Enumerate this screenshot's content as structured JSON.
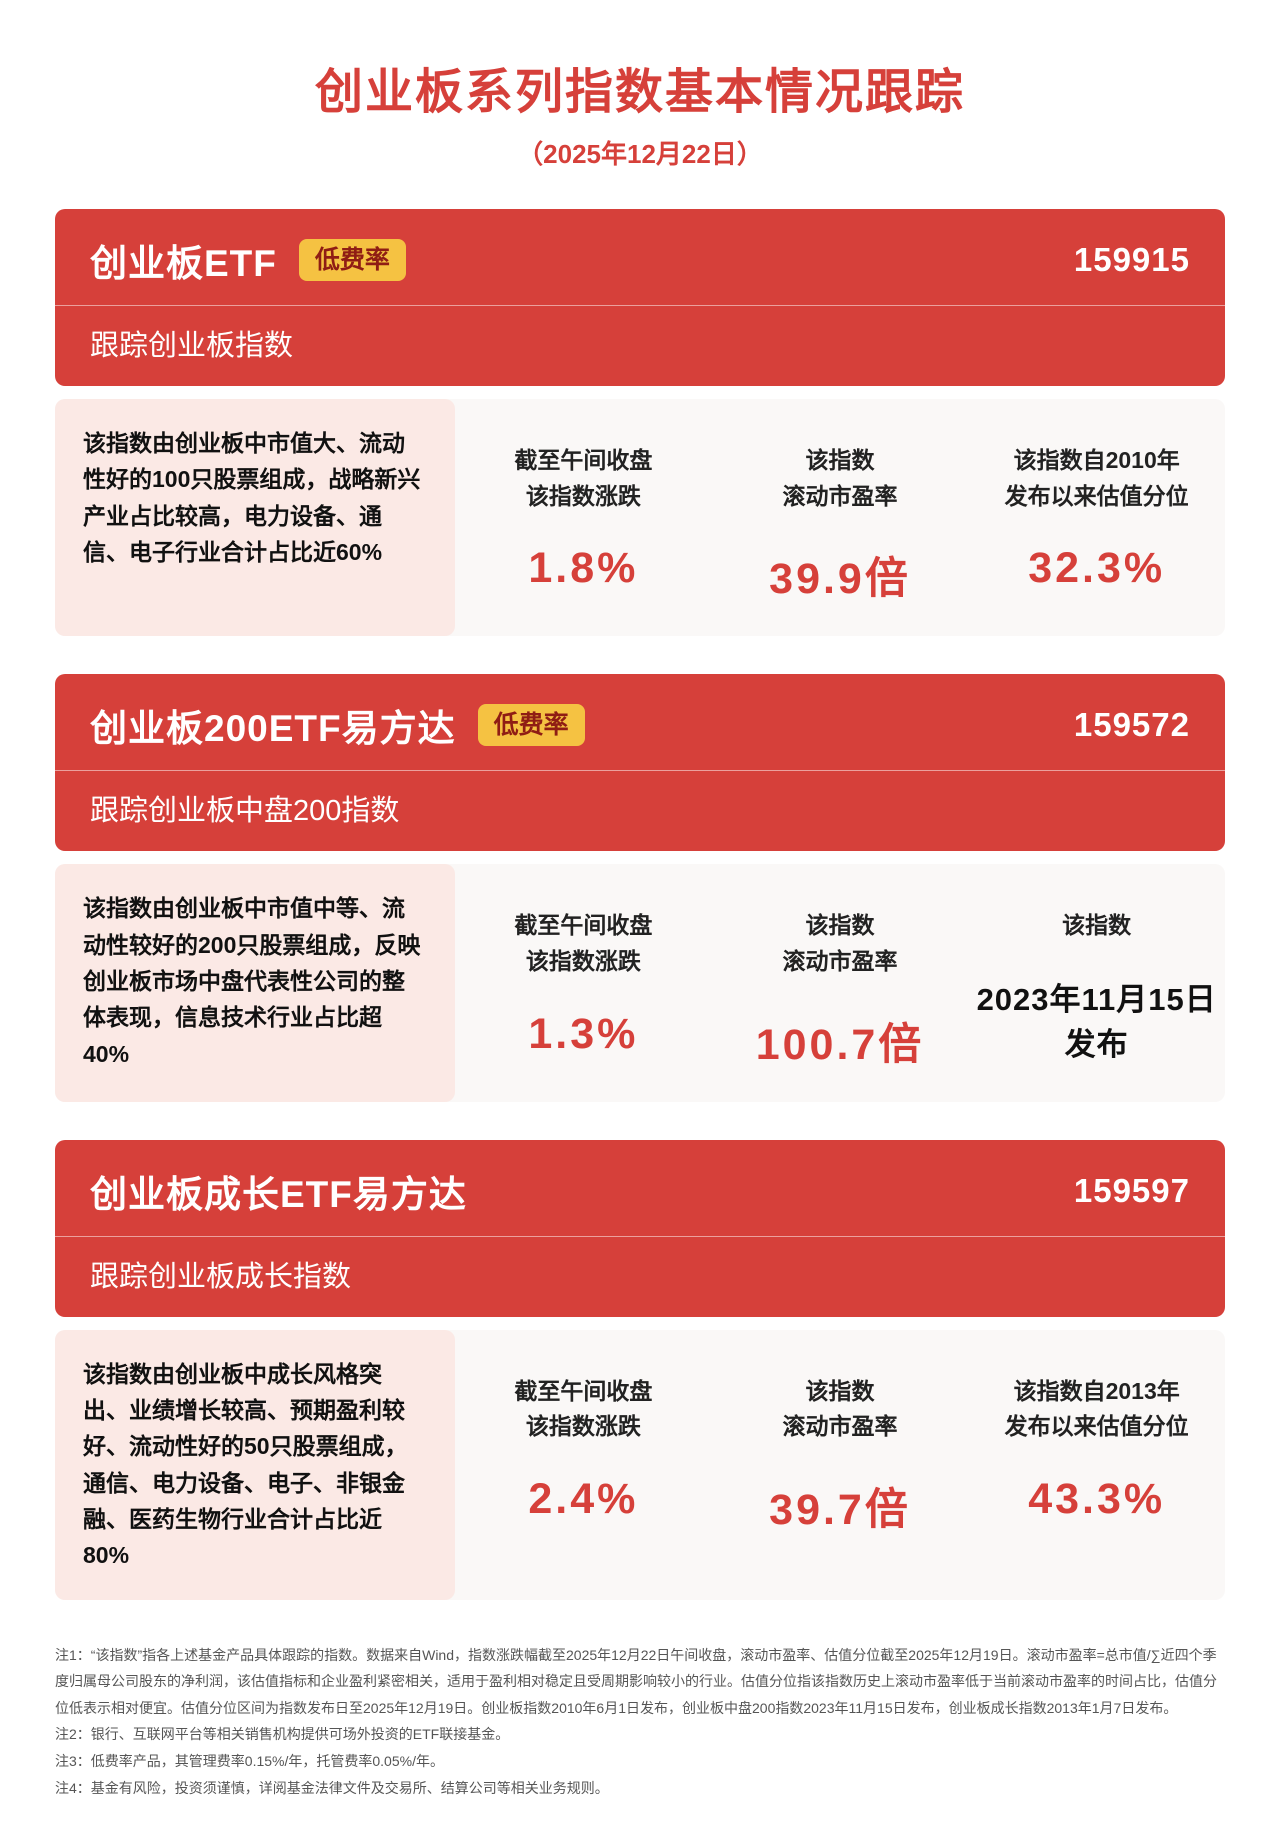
{
  "page": {
    "title": "创业板系列指数基本情况跟踪",
    "date": "（2025年12月22日）"
  },
  "colors": {
    "accent_red": "#d6403a",
    "badge_bg": "#f5c242",
    "badge_text": "#8f1d14",
    "desc_bg": "#fbe9e5",
    "stats_bg": "#faf8f7"
  },
  "cards": [
    {
      "name": "创业板ETF",
      "badge": "低费率",
      "code": "159915",
      "tracking": "跟踪创业板指数",
      "description": "该指数由创业板中市值大、流动性好的100只股票组成，战略新兴产业占比较高，电力设备、通信、电子行业合计占比近60%",
      "stats": [
        {
          "labels": [
            "截至午间收盘",
            "该指数涨跌"
          ],
          "value": "1.8%"
        },
        {
          "labels": [
            "该指数",
            "滚动市盈率"
          ],
          "value": "39.9倍"
        },
        {
          "labels": [
            "该指数自2010年",
            "发布以来估值分位"
          ],
          "value": "32.3%"
        }
      ]
    },
    {
      "name": "创业板200ETF易方达",
      "badge": "低费率",
      "code": "159572",
      "tracking": "跟踪创业板中盘200指数",
      "description": "该指数由创业板中市值中等、流动性较好的200只股票组成，反映创业板市场中盘代表性公司的整体表现，信息技术行业占比超40%",
      "stats": [
        {
          "labels": [
            "截至午间收盘",
            "该指数涨跌"
          ],
          "value": "1.3%"
        },
        {
          "labels": [
            "该指数",
            "滚动市盈率"
          ],
          "value": "100.7倍"
        },
        {
          "labels": [
            "该指数"
          ],
          "value_lines": [
            "2023年11月15日",
            "发布"
          ]
        }
      ]
    },
    {
      "name": "创业板成长ETF易方达",
      "badge": "",
      "code": "159597",
      "tracking": "跟踪创业板成长指数",
      "description": "该指数由创业板中成长风格突出、业绩增长较高、预期盈利较好、流动性好的50只股票组成，通信、电力设备、电子、非银金融、医药生物行业合计占比近80%",
      "stats": [
        {
          "labels": [
            "截至午间收盘",
            "该指数涨跌"
          ],
          "value": "2.4%"
        },
        {
          "labels": [
            "该指数",
            "滚动市盈率"
          ],
          "value": "39.7倍"
        },
        {
          "labels": [
            "该指数自2013年",
            "发布以来估值分位"
          ],
          "value": "43.3%"
        }
      ]
    }
  ],
  "notes": [
    "注1：“该指数”指各上述基金产品具体跟踪的指数。数据来自Wind，指数涨跌幅截至2025年12月22日午间收盘，滚动市盈率、估值分位截至2025年12月19日。滚动市盈率=总市值/∑近四个季度归属母公司股东的净利润，该估值指标和企业盈利紧密相关，适用于盈利相对稳定且受周期影响较小的行业。估值分位指该指数历史上滚动市盈率低于当前滚动市盈率的时间占比，估值分位低表示相对便宜。估值分位区间为指数发布日至2025年12月19日。创业板指数2010年6月1日发布，创业板中盘200指数2023年11月15日发布，创业板成长指数2013年1月7日发布。",
    "注2：银行、互联网平台等相关销售机构提供可场外投资的ETF联接基金。",
    "注3：低费率产品，其管理费率0.15%/年，托管费率0.05%/年。",
    "注4：基金有风险，投资须谨慎，详阅基金法律文件及交易所、结算公司等相关业务规则。"
  ]
}
